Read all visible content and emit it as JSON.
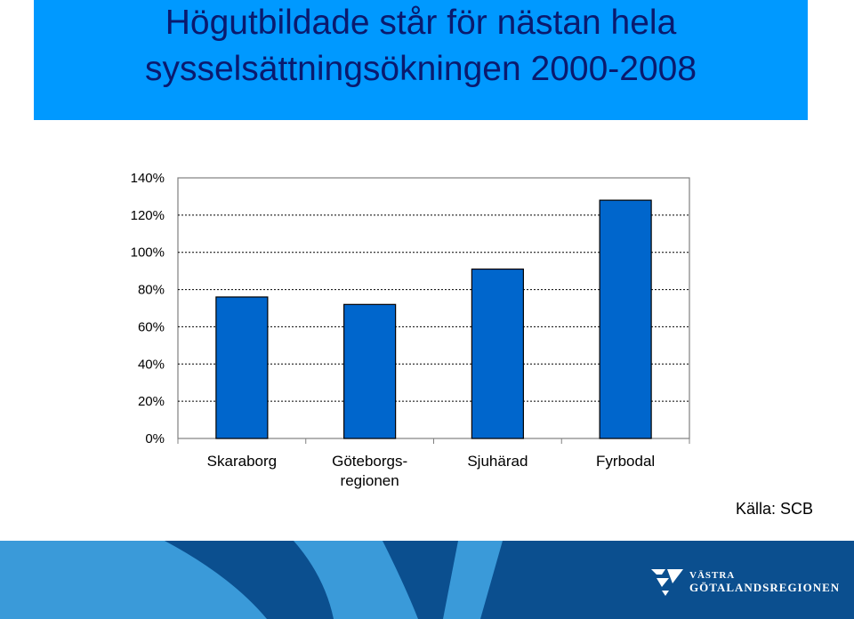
{
  "title": {
    "line1": "Högutbildade står för nästan hela",
    "line2": "sysselsättningsökningen 2000-2008"
  },
  "chart_data": {
    "type": "bar",
    "categories": [
      "Skaraborg",
      "Göteborgs-\nregionen",
      "Sjuhärad",
      "Fyrbodal"
    ],
    "values": [
      76,
      72,
      91,
      128
    ],
    "ylim": [
      0,
      140
    ],
    "yticks": [
      "0%",
      "20%",
      "40%",
      "60%",
      "80%",
      "100%",
      "120%",
      "140%"
    ],
    "grid": true,
    "bar_color": "#0066cc",
    "xlabel": "",
    "ylabel": ""
  },
  "source": "Källa: SCB",
  "logo": {
    "line1": "VÄSTRA",
    "line2": "GÖTALANDSREGIONEN"
  },
  "colors": {
    "banner": "#0099ff",
    "title_text": "#0a1a6e",
    "footer_light": "#3a9ad9",
    "footer_dark": "#0b4f8f"
  }
}
